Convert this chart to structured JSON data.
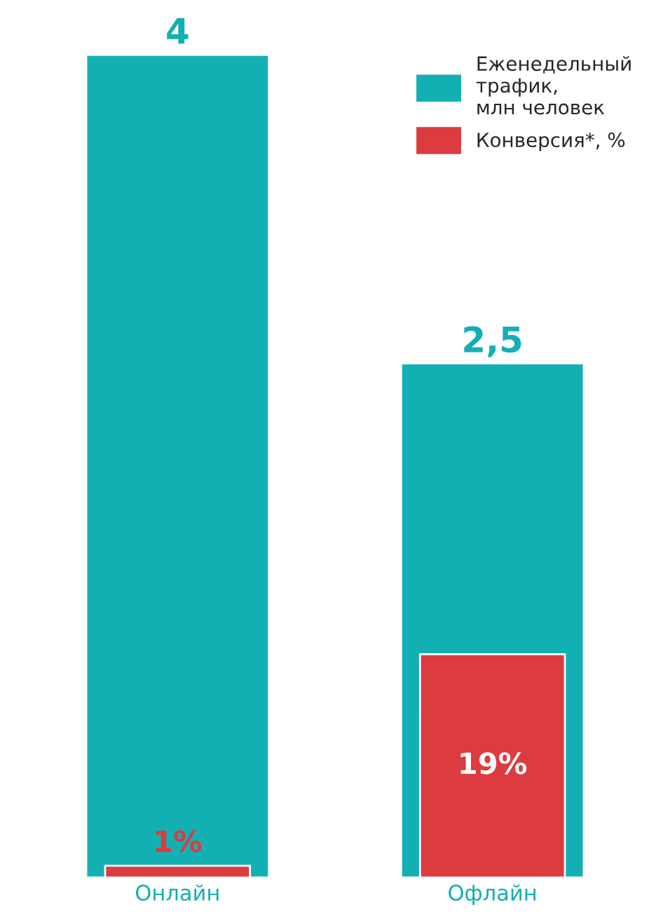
{
  "chart_data": {
    "type": "bar",
    "categories": [
      "Онлайн",
      "Офлайн"
    ],
    "series": [
      {
        "name": "Еженедельный трафик, млн человек",
        "color": "#13b0b3",
        "values": [
          4,
          2.5
        ],
        "value_labels": [
          "4",
          "2,5"
        ]
      },
      {
        "name": "Конверсия*, %",
        "color": "#dc3b3f",
        "values": [
          1,
          19
        ],
        "value_labels": [
          "1%",
          "19%"
        ],
        "axis": "y2"
      }
    ],
    "ylim": [
      0,
      4
    ],
    "y2lim": [
      0,
      70
    ],
    "tick_labels": "x",
    "legend": "top right",
    "grid": false
  }
}
